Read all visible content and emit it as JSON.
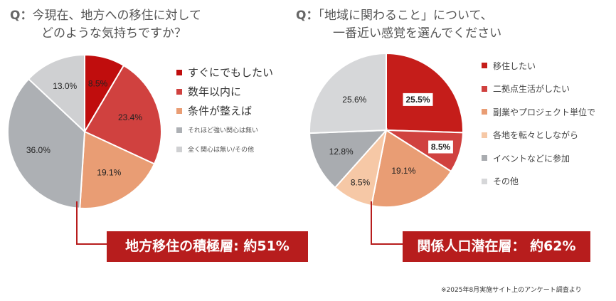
{
  "question1": {
    "prefix": "Q：",
    "line1": "今現在、地方への移住に対して",
    "line2": "どのような気持ちですか？"
  },
  "question2": {
    "prefix": "Q：",
    "line1": "「地域に関わること」について、",
    "line2": "一番近い感覚を選んでください"
  },
  "chart_data": [
    {
      "type": "pie",
      "title": "今現在、地方への移住に対してどのような気持ちですか？",
      "categories": [
        "すぐにでもしたい",
        "数年以内に",
        "条件が整えば",
        "それほど強い関心は無い",
        "全く関心は無い/その他"
      ],
      "values": [
        8.5,
        23.4,
        19.1,
        36.0,
        13.0
      ],
      "labels": [
        "8.5%",
        "23.4%",
        "19.1%",
        "36.0%",
        "13.0%"
      ],
      "colors": [
        "#c00d0d",
        "#d0413f",
        "#e99d74",
        "#adb0b4",
        "#cfd0d2"
      ],
      "legend_position": "right"
    },
    {
      "type": "pie",
      "title": "「地域に関わること」について、一番近い感覚を選んでください",
      "categories": [
        "移住したい",
        "二拠点生活がしたい",
        "副業やプロジェクト単位で",
        "各地を転々としながら",
        "イベントなどに参加",
        "その他"
      ],
      "values": [
        25.5,
        8.5,
        19.1,
        8.5,
        12.8,
        25.6
      ],
      "labels": [
        "25.5%",
        "8.5%",
        "19.1%",
        "8.5%",
        "12.8%",
        "25.6%"
      ],
      "colors": [
        "#c51d1a",
        "#d0413f",
        "#e99d74",
        "#f6c8a6",
        "#a9acb0",
        "#d6d7d9"
      ],
      "legend_position": "right"
    }
  ],
  "banner1": "地方移住の積極層: 約51%",
  "banner2": "関係人口潜在層： 約62%",
  "footnote": "※2025年8月実施サイト上のアンケート調査より"
}
